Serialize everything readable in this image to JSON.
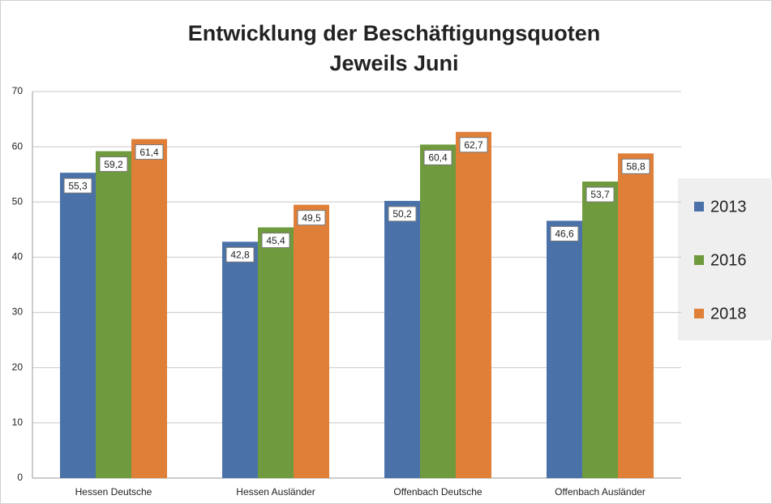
{
  "chart_data": {
    "type": "bar",
    "title": "Entwicklung der Beschäftigungsquoten",
    "subtitle": "Jeweils Juni",
    "categories": [
      "Hessen Deutsche",
      "Hessen Ausländer",
      "Offenbach Deutsche",
      "Offenbach Ausländer"
    ],
    "series": [
      {
        "name": "2013",
        "color": "#4a72a9",
        "values": [
          55.3,
          42.8,
          50.2,
          46.6
        ],
        "value_labels": [
          "55,3",
          "42,8",
          "50,2",
          "46,6"
        ]
      },
      {
        "name": "2016",
        "color": "#6f9a3d",
        "values": [
          59.2,
          45.4,
          60.4,
          53.7
        ],
        "value_labels": [
          "59,2",
          "45,4",
          "60,4",
          "53,7"
        ]
      },
      {
        "name": "2018",
        "color": "#e07f38",
        "values": [
          61.4,
          49.5,
          62.7,
          58.8
        ],
        "value_labels": [
          "61,4",
          "49,5",
          "62,7",
          "58,8"
        ]
      }
    ],
    "ylim": [
      0,
      70
    ],
    "yticks": [
      0,
      10,
      20,
      30,
      40,
      50,
      60,
      70
    ],
    "grid": true,
    "legend": "right"
  }
}
